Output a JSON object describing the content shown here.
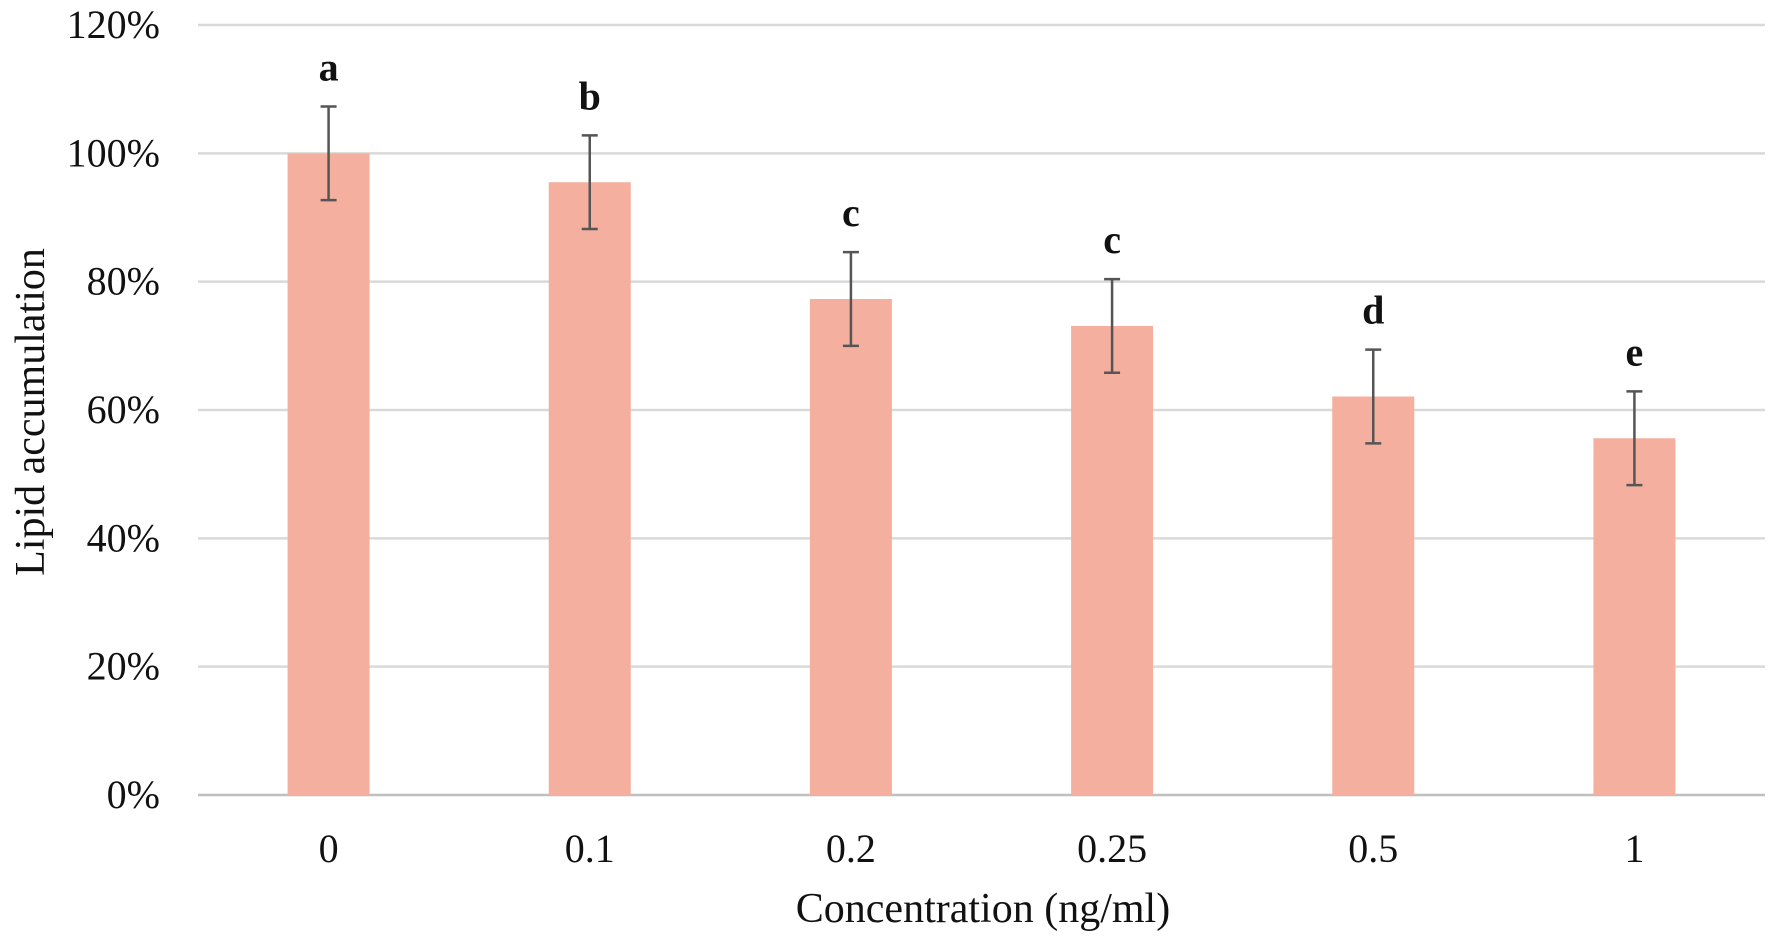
{
  "chart_data": {
    "type": "bar",
    "title": "",
    "xlabel": "Concentration (ng/ml)",
    "ylabel": "Lipid accumulation",
    "categories": [
      "0",
      "0.1",
      "0.2",
      "0.25",
      "0.5",
      "1"
    ],
    "values": [
      100,
      95.5,
      77.3,
      73.1,
      62.1,
      55.6
    ],
    "error": [
      7.3,
      7.3,
      7.3,
      7.3,
      7.3,
      7.3
    ],
    "significance_letters": [
      "a",
      "b",
      "c",
      "c",
      "d",
      "e"
    ],
    "ylim": [
      0,
      120
    ],
    "yticks": [
      0,
      20,
      40,
      60,
      80,
      100,
      120
    ],
    "ytick_labels": [
      "0%",
      "20%",
      "40%",
      "60%",
      "80%",
      "100%",
      "120%"
    ],
    "grid": true,
    "legend": "none",
    "colors": {
      "bar": "#f4af9f",
      "error_bar": "#555555",
      "grid": "#d9d9d9"
    }
  }
}
